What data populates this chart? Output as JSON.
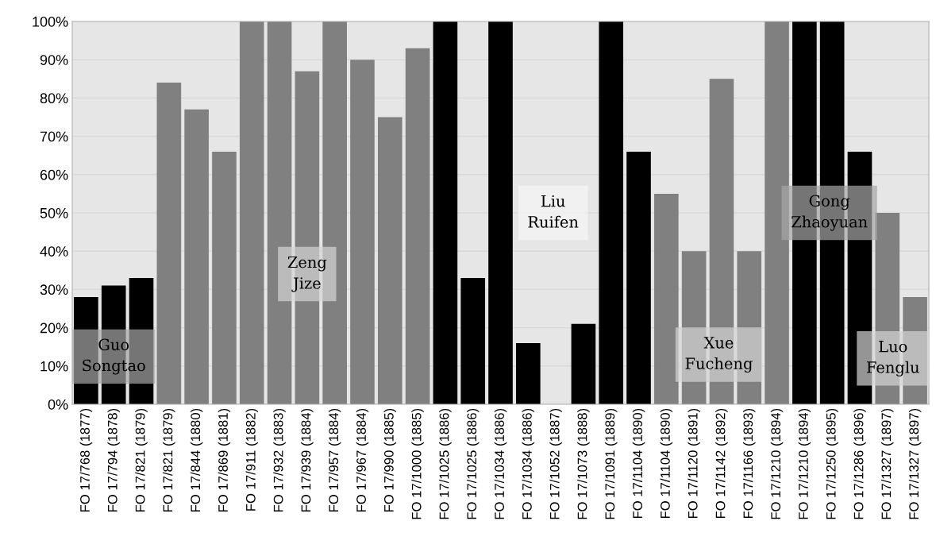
{
  "chart_data": {
    "type": "bar",
    "categories": [
      "FO 17/768 (1877)",
      "FO 17/794 (1878)",
      "FO 17/821 (1879)",
      "FO 17/821 (1879)",
      "FO 17/844 (1880)",
      "FO 17/869 (1881)",
      "FO 17/911 (1882)",
      "FO 17/932 (1883)",
      "FO 17/939 (1884)",
      "FO 17/957 (1884)",
      "FO 17/967 (1884)",
      "FO 17/990 (1885)",
      "FO 17/1000 (1885)",
      "FO 17/1025 (1886)",
      "FO 17/1025 (1886)",
      "FO 17/1034 (1886)",
      "FO 17/1034 (1886)",
      "FO 17/1052 (1887)",
      "FO 17/1073 (1888)",
      "FO 17/1091 (1889)",
      "FO 17/1104 (1890)",
      "FO 17/1104 (1890)",
      "FO 17/1120 (1891)",
      "FO 17/1142 (1892)",
      "FO 17/1166 (1893)",
      "FO 17/1210 (1894)",
      "FO 17/1210 (1894)",
      "FO 17/1250 (1895)",
      "FO 17/1286 (1896)",
      "FO 17/1327 (1897)",
      "FO 17/1327 (1897)"
    ],
    "values": [
      28,
      31,
      33,
      84,
      77,
      66,
      100,
      100,
      87,
      100,
      90,
      75,
      93,
      100,
      33,
      100,
      16,
      0,
      21,
      100,
      66,
      55,
      40,
      85,
      40,
      100,
      100,
      100,
      66,
      50,
      28
    ],
    "colors": [
      "#000000",
      "#000000",
      "#000000",
      "#808080",
      "#808080",
      "#808080",
      "#808080",
      "#808080",
      "#808080",
      "#808080",
      "#808080",
      "#808080",
      "#808080",
      "#000000",
      "#000000",
      "#000000",
      "#000000",
      "#000000",
      "#000000",
      "#000000",
      "#000000",
      "#808080",
      "#808080",
      "#808080",
      "#808080",
      "#808080",
      "#000000",
      "#000000",
      "#000000",
      "#808080",
      "#808080"
    ],
    "ylim": [
      0,
      100
    ],
    "yticks": [
      {
        "value": 0,
        "label": "0%"
      },
      {
        "value": 10,
        "label": "10%"
      },
      {
        "value": 20,
        "label": "20%"
      },
      {
        "value": 30,
        "label": "30%"
      },
      {
        "value": 40,
        "label": "40%"
      },
      {
        "value": 50,
        "label": "50%"
      },
      {
        "value": 60,
        "label": "60%"
      },
      {
        "value": 70,
        "label": "70%"
      },
      {
        "value": 80,
        "label": "80%"
      },
      {
        "value": 90,
        "label": "90%"
      },
      {
        "value": 100,
        "label": "100%"
      }
    ],
    "grid": "y",
    "annotations": [
      "Guo\nSongtao",
      "Zeng\nJize",
      "Liu\nRuifen",
      "Xue\nFucheng",
      "Gong\nZhaoyuan",
      "Luo\nFenglu"
    ]
  }
}
